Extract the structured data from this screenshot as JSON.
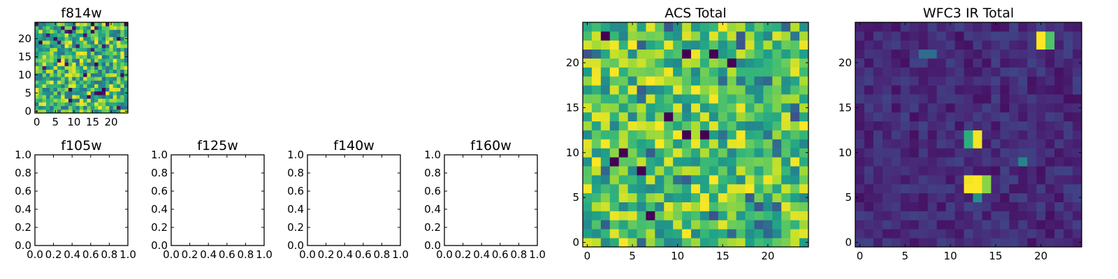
{
  "chart_data": [
    {
      "id": "f814w",
      "type": "heatmap",
      "title": "f814w",
      "xlim": [
        -0.5,
        24.5
      ],
      "ylim": [
        -0.5,
        24.5
      ],
      "xticks": [
        0,
        5,
        10,
        15,
        20
      ],
      "yticks": [
        0,
        5,
        10,
        15,
        20
      ],
      "xtick_labels": [
        "0",
        "5",
        "10",
        "15",
        "20"
      ],
      "ytick_labels": [
        "0",
        "5",
        "10",
        "15",
        "20"
      ],
      "colormap": "viridis",
      "grid": false,
      "shape": [
        25,
        25
      ],
      "values": null
    },
    {
      "id": "f105w",
      "type": "scatter",
      "title": "f105w",
      "xlim": [
        0,
        1
      ],
      "ylim": [
        0,
        1
      ],
      "xticks": [
        0,
        0.2,
        0.4,
        0.6,
        0.8,
        1.0
      ],
      "yticks": [
        0,
        0.2,
        0.4,
        0.6,
        0.8,
        1.0
      ],
      "xtick_labels": [
        "0.0",
        "0.2",
        "0.4",
        "0.6",
        "0.8",
        "1.0"
      ],
      "ytick_labels": [
        "0.0",
        "0.2",
        "0.4",
        "0.6",
        "0.8",
        "1.0"
      ],
      "grid": false,
      "series": []
    },
    {
      "id": "f125w",
      "type": "scatter",
      "title": "f125w",
      "xlim": [
        0,
        1
      ],
      "ylim": [
        0,
        1
      ],
      "xticks": [
        0,
        0.2,
        0.4,
        0.6,
        0.8,
        1.0
      ],
      "yticks": [
        0,
        0.2,
        0.4,
        0.6,
        0.8,
        1.0
      ],
      "xtick_labels": [
        "0.0",
        "0.2",
        "0.4",
        "0.6",
        "0.8",
        "1.0"
      ],
      "ytick_labels": [
        "0.0",
        "0.2",
        "0.4",
        "0.6",
        "0.8",
        "1.0"
      ],
      "grid": false,
      "series": []
    },
    {
      "id": "f140w",
      "type": "scatter",
      "title": "f140w",
      "xlim": [
        0,
        1
      ],
      "ylim": [
        0,
        1
      ],
      "xticks": [
        0,
        0.2,
        0.4,
        0.6,
        0.8,
        1.0
      ],
      "yticks": [
        0,
        0.2,
        0.4,
        0.6,
        0.8,
        1.0
      ],
      "xtick_labels": [
        "0.0",
        "0.2",
        "0.4",
        "0.6",
        "0.8",
        "1.0"
      ],
      "ytick_labels": [
        "0.0",
        "0.2",
        "0.4",
        "0.6",
        "0.8",
        "1.0"
      ],
      "grid": false,
      "series": []
    },
    {
      "id": "f160w",
      "type": "scatter",
      "title": "f160w",
      "xlim": [
        0,
        1
      ],
      "ylim": [
        0,
        1
      ],
      "xticks": [
        0,
        0.2,
        0.4,
        0.6,
        0.8,
        1.0
      ],
      "yticks": [
        0,
        0.2,
        0.4,
        0.6,
        0.8,
        1.0
      ],
      "xtick_labels": [
        "0.0",
        "0.2",
        "0.4",
        "0.6",
        "0.8",
        "1.0"
      ],
      "ytick_labels": [
        "0.0",
        "0.2",
        "0.4",
        "0.6",
        "0.8",
        "1.0"
      ],
      "grid": false,
      "series": []
    },
    {
      "id": "acs_total",
      "type": "heatmap",
      "title": "ACS Total",
      "xlim": [
        -0.5,
        24.5
      ],
      "ylim": [
        -0.5,
        24.5
      ],
      "xticks": [
        0,
        5,
        10,
        15,
        20
      ],
      "yticks": [
        0,
        5,
        10,
        15,
        20
      ],
      "xtick_labels": [
        "0",
        "5",
        "10",
        "15",
        "20"
      ],
      "ytick_labels": [
        "0",
        "5",
        "10",
        "15",
        "20"
      ],
      "colormap": "viridis",
      "grid": false,
      "shape": [
        25,
        25
      ],
      "min_cells": [
        [
          9,
          14
        ],
        [
          11,
          12
        ],
        [
          13,
          12
        ],
        [
          4,
          10
        ],
        [
          3,
          9
        ],
        [
          6,
          8
        ],
        [
          2,
          23
        ],
        [
          11,
          21
        ],
        [
          14,
          21
        ],
        [
          16,
          20
        ],
        [
          7,
          3
        ]
      ],
      "values": null
    },
    {
      "id": "wfc3_ir_total",
      "type": "heatmap",
      "title": "WFC3 IR Total",
      "xlim": [
        -0.5,
        24.5
      ],
      "ylim": [
        -0.5,
        24.5
      ],
      "xticks": [
        0,
        5,
        10,
        15,
        20
      ],
      "yticks": [
        0,
        5,
        10,
        15,
        20
      ],
      "xtick_labels": [
        "0",
        "5",
        "10",
        "15",
        "20"
      ],
      "ytick_labels": [
        "0",
        "5",
        "10",
        "15",
        "20"
      ],
      "colormap": "viridis",
      "grid": false,
      "shape": [
        25,
        25
      ],
      "bright_sources": [
        {
          "x": 20,
          "y": 23,
          "value": 1.0
        },
        {
          "x": 20,
          "y": 22,
          "value": 1.0
        },
        {
          "x": 21,
          "y": 23,
          "value": 0.72
        },
        {
          "x": 21,
          "y": 22,
          "value": 0.72
        },
        {
          "x": 12,
          "y": 12,
          "value": 0.62
        },
        {
          "x": 12,
          "y": 11,
          "value": 0.62
        },
        {
          "x": 13,
          "y": 12,
          "value": 0.98
        },
        {
          "x": 13,
          "y": 11,
          "value": 0.98
        },
        {
          "x": 12,
          "y": 7,
          "value": 0.98
        },
        {
          "x": 12,
          "y": 6,
          "value": 1.0
        },
        {
          "x": 13,
          "y": 7,
          "value": 1.0
        },
        {
          "x": 13,
          "y": 6,
          "value": 1.0
        },
        {
          "x": 14,
          "y": 7,
          "value": 0.82
        },
        {
          "x": 14,
          "y": 6,
          "value": 0.82
        },
        {
          "x": 13,
          "y": 5,
          "value": 0.5
        },
        {
          "x": 18,
          "y": 9,
          "value": 0.45
        },
        {
          "x": 7,
          "y": 21,
          "value": 0.35
        },
        {
          "x": 8,
          "y": 21,
          "value": 0.35
        }
      ],
      "values": null
    }
  ]
}
